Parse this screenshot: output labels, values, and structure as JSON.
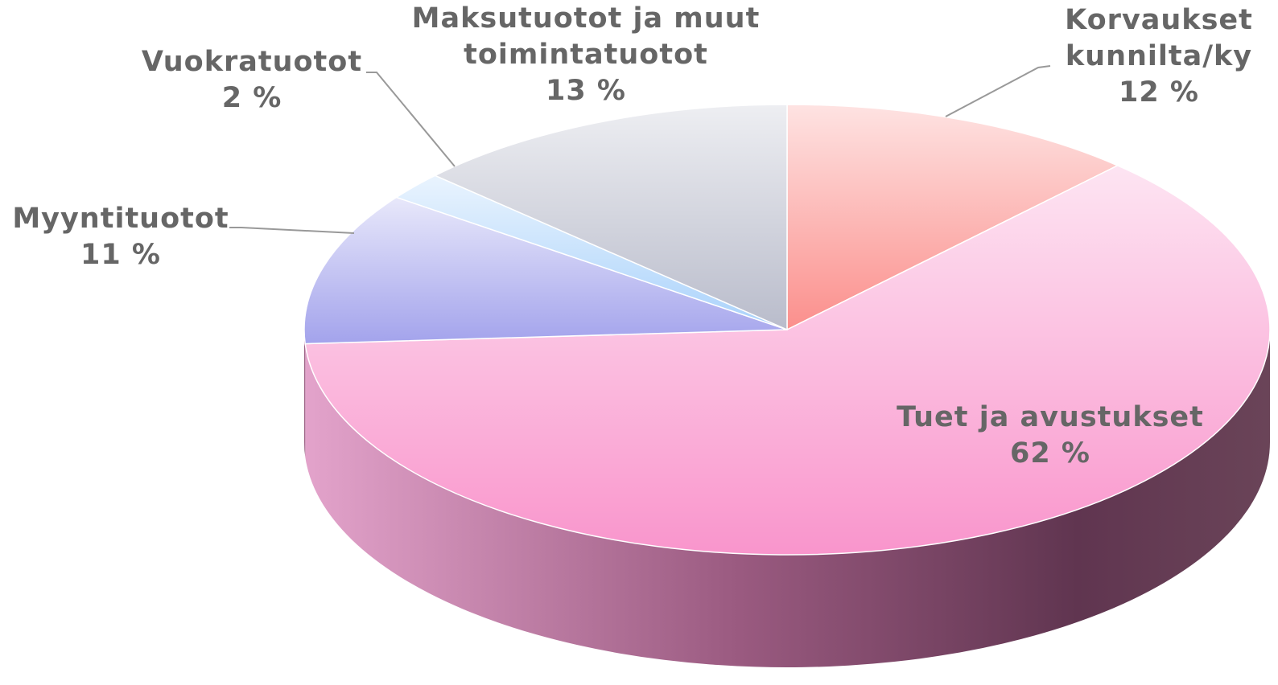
{
  "chart_data": {
    "type": "pie",
    "categories": [
      "Korvaukset kunnilta/ky",
      "Tuet ja avustukset",
      "Myyntituotot",
      "Vuokratuotot",
      "Maksutuotot ja muut toimintatuotot"
    ],
    "values": [
      12,
      62,
      11,
      2,
      13
    ],
    "value_labels": [
      "12 %",
      "62 %",
      "11 %",
      "2 %",
      "13 %"
    ],
    "colors": [
      "#fb8f8c",
      "#f995cc",
      "#a3a3ec",
      "#a9d2fb",
      "#b9bccb"
    ]
  }
}
